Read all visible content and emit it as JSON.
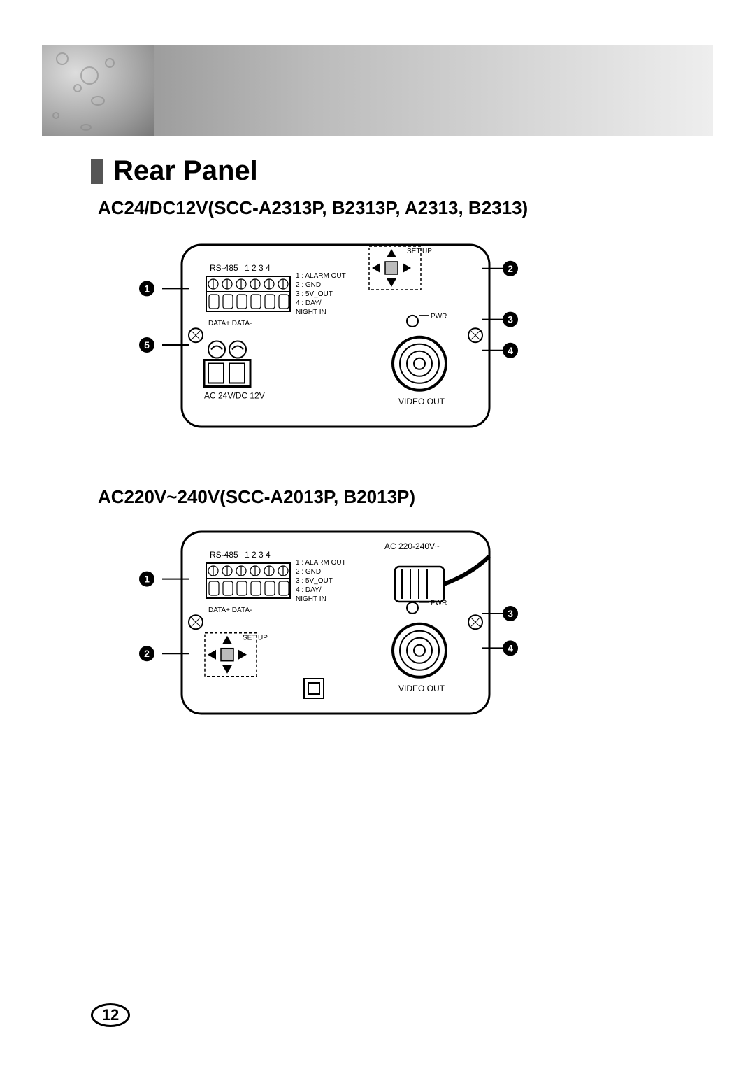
{
  "section_title": "Rear Panel",
  "subhead_a": "AC24/DC12V(SCC-A2313P, B2313P, A2313, B2313)",
  "subhead_b": "AC220V~240V(SCC-A2013P, B2013P)",
  "page_number": "12",
  "diagram_common": {
    "rs485_label": "RS-485",
    "pins": "1   2   3   4",
    "pin_legend": [
      "1 : ALARM OUT",
      "2 : GND",
      "3 : 5V_OUT",
      "4 : DAY/",
      "    NIGHT IN"
    ],
    "data_label": "DATA+ DATA-",
    "setup_label": "SET UP",
    "pwr_label": "PWR",
    "video_label": "VIDEO OUT"
  },
  "diagram_a": {
    "power_label": "AC 24V/DC 12V",
    "ac_top_label": "",
    "callouts": [
      {
        "n": "1",
        "side": "left",
        "y": 0.24
      },
      {
        "n": "5",
        "side": "left",
        "y": 0.55
      },
      {
        "n": "2",
        "side": "right",
        "y": 0.13
      },
      {
        "n": "3",
        "side": "right",
        "y": 0.41
      },
      {
        "n": "4",
        "side": "right",
        "y": 0.58
      }
    ],
    "setup_pos": "top-right",
    "show_power_terminals": true,
    "show_ac_plug": false
  },
  "diagram_b": {
    "power_label": "",
    "ac_top_label": "AC 220-240V~",
    "callouts": [
      {
        "n": "1",
        "side": "left",
        "y": 0.26
      },
      {
        "n": "2",
        "side": "left",
        "y": 0.67
      },
      {
        "n": "3",
        "side": "right",
        "y": 0.45
      },
      {
        "n": "4",
        "side": "right",
        "y": 0.64
      }
    ],
    "setup_pos": "bottom-left",
    "show_power_terminals": false,
    "show_ac_plug": true
  },
  "style": {
    "stroke": "#000000",
    "stroke_width": 3,
    "thin_stroke": 1.5,
    "font_small": 12,
    "font_tiny": 10,
    "bg": "#ffffff"
  }
}
